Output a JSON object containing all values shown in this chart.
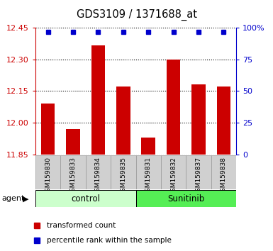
{
  "title": "GDS3109 / 1371688_at",
  "samples": [
    "GSM159830",
    "GSM159833",
    "GSM159834",
    "GSM159835",
    "GSM159831",
    "GSM159832",
    "GSM159837",
    "GSM159838"
  ],
  "bar_values": [
    12.09,
    11.97,
    12.365,
    12.17,
    11.93,
    12.3,
    12.18,
    12.17
  ],
  "percentile_values": [
    100,
    100,
    100,
    100,
    100,
    100,
    100,
    100
  ],
  "ylim_left": [
    11.85,
    12.45
  ],
  "yticks_left": [
    11.85,
    12.0,
    12.15,
    12.3,
    12.45
  ],
  "ylim_right": [
    0,
    100
  ],
  "yticks_right": [
    0,
    25,
    50,
    75,
    100
  ],
  "ytick_right_labels": [
    "0",
    "25",
    "50",
    "75",
    "100%"
  ],
  "bar_color": "#cc0000",
  "percentile_color": "#0000cc",
  "grid_color": "#000000",
  "control_label": "control",
  "sunitinib_label": "Sunitinib",
  "agent_label": "agent",
  "legend_bar_label": "transformed count",
  "legend_dot_label": "percentile rank within the sample",
  "control_color": "#ccffcc",
  "sunitinib_color": "#55ee55",
  "tick_box_color": "#d0d0d0",
  "xlabel_color": "#cc0000",
  "ylabel_right_color": "#0000cc",
  "bar_width": 0.55,
  "bg_color": "#ffffff"
}
